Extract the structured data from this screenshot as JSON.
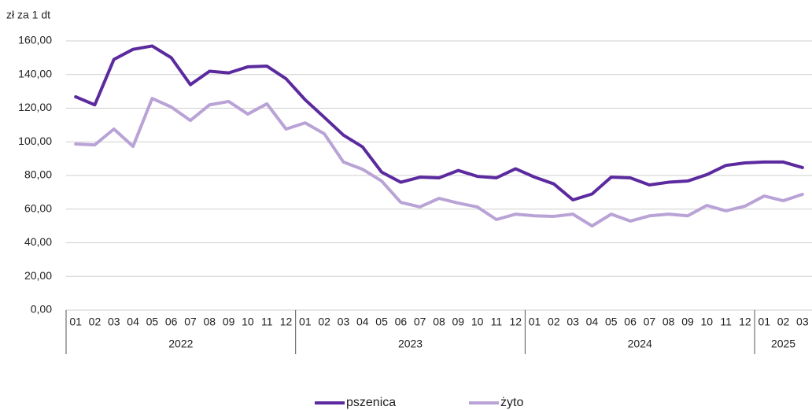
{
  "chart_data": {
    "type": "line",
    "y_axis_label": "zł za 1 dt",
    "categories": [
      "01",
      "02",
      "03",
      "04",
      "05",
      "06",
      "07",
      "08",
      "09",
      "10",
      "11",
      "12",
      "01",
      "02",
      "03",
      "04",
      "05",
      "06",
      "07",
      "08",
      "09",
      "10",
      "11",
      "12",
      "01",
      "02",
      "03",
      "04",
      "05",
      "06",
      "07",
      "08",
      "09",
      "10",
      "11",
      "12",
      "01",
      "02",
      "03"
    ],
    "year_groups": [
      {
        "label": "2022",
        "months": 12
      },
      {
        "label": "2023",
        "months": 12
      },
      {
        "label": "2024",
        "months": 12
      },
      {
        "label": "2025",
        "months": 3
      }
    ],
    "series": [
      {
        "name": "pszenica",
        "color": "#5b2a9e",
        "values": [
          126.8,
          122,
          149,
          155,
          157,
          150,
          134,
          142,
          141,
          144.6,
          145,
          137.5,
          125,
          114.6,
          104,
          97,
          82,
          76,
          79,
          78.6,
          83,
          79.5,
          78.6,
          84,
          79,
          75,
          65.5,
          69,
          79,
          78.6,
          74.4,
          76,
          76.7,
          80.5,
          86,
          87.5,
          88,
          88,
          84.7
        ]
      },
      {
        "name": "żyto",
        "color": "#b9a3d6",
        "values": [
          98.7,
          98.2,
          107.6,
          97.3,
          125.8,
          120.7,
          112.7,
          122,
          124,
          116.5,
          122.6,
          107.6,
          111.3,
          104.8,
          88,
          83.7,
          76.7,
          64,
          61.3,
          66.4,
          63.6,
          61.3,
          53.8,
          57,
          56,
          55.7,
          57,
          50,
          57,
          52.9,
          56,
          57,
          56,
          62.2,
          59,
          61.8,
          67.8,
          65,
          68.8
        ]
      }
    ],
    "ylim": [
      0,
      160
    ],
    "yticks": [
      {
        "value": 0,
        "label": "0,00"
      },
      {
        "value": 20,
        "label": "20,00"
      },
      {
        "value": 40,
        "label": "40,00"
      },
      {
        "value": 60,
        "label": "60,00"
      },
      {
        "value": 80,
        "label": "80,00"
      },
      {
        "value": 100,
        "label": "100,00"
      },
      {
        "value": 120,
        "label": "120,00"
      },
      {
        "value": 140,
        "label": "140,00"
      },
      {
        "value": 160,
        "label": "160,00"
      }
    ],
    "grid": true
  }
}
